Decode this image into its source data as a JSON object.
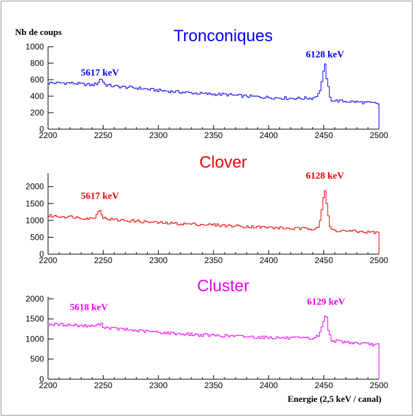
{
  "ylabel": "Nb de coups",
  "xlabel": "Energie (2,5 keV / canal)",
  "chart_data": [
    {
      "type": "line",
      "title": "Tronconiques",
      "color": "#0000ee",
      "xlim": [
        2200,
        2500
      ],
      "ylim": [
        0,
        1000
      ],
      "xticks": [
        2200,
        2250,
        2300,
        2350,
        2400,
        2450,
        2500
      ],
      "yticks": [
        0,
        200,
        400,
        600,
        800,
        1000
      ],
      "series": [
        {
          "x": [
            2200,
            2220,
            2240,
            2245,
            2248,
            2252,
            2260,
            2280,
            2300,
            2320,
            2340,
            2360,
            2380,
            2400,
            2420,
            2440,
            2446,
            2449,
            2451,
            2453,
            2456,
            2460,
            2480,
            2500
          ],
          "values": [
            560,
            560,
            535,
            555,
            620,
            540,
            520,
            500,
            470,
            450,
            430,
            420,
            400,
            385,
            375,
            375,
            430,
            620,
            800,
            600,
            360,
            345,
            330,
            310
          ]
        }
      ],
      "annotations": [
        {
          "text": "5617 keV",
          "x": 2247,
          "y": 650
        },
        {
          "text": "6128 keV",
          "x": 2451,
          "y": 870
        }
      ]
    },
    {
      "type": "line",
      "title": "Clover",
      "color": "#ee0000",
      "xlim": [
        2200,
        2500
      ],
      "ylim": [
        0,
        2400
      ],
      "xticks": [
        2200,
        2250,
        2300,
        2350,
        2400,
        2450,
        2500
      ],
      "yticks": [
        0,
        500,
        1000,
        1500,
        2000
      ],
      "series": [
        {
          "x": [
            2200,
            2220,
            2240,
            2244,
            2247,
            2250,
            2260,
            2280,
            2300,
            2320,
            2340,
            2360,
            2380,
            2400,
            2420,
            2440,
            2446,
            2449,
            2451,
            2453,
            2456,
            2460,
            2480,
            2500
          ],
          "values": [
            1130,
            1110,
            1050,
            1140,
            1360,
            1070,
            1020,
            980,
            930,
            900,
            880,
            850,
            820,
            790,
            760,
            750,
            840,
            1500,
            1950,
            1400,
            750,
            700,
            670,
            640
          ]
        }
      ],
      "annotations": [
        {
          "text": "5617 keV",
          "x": 2247,
          "y": 1640
        },
        {
          "text": "6128 keV",
          "x": 2451,
          "y": 2240
        }
      ]
    },
    {
      "type": "line",
      "title": "Cluster",
      "color": "#ee00ee",
      "xlim": [
        2200,
        2500
      ],
      "ylim": [
        0,
        2050
      ],
      "xticks": [
        2200,
        2250,
        2300,
        2350,
        2400,
        2450,
        2500
      ],
      "yticks": [
        0,
        500,
        1000,
        1500,
        2000
      ],
      "series": [
        {
          "x": [
            2200,
            2220,
            2240,
            2245,
            2248,
            2251,
            2260,
            2280,
            2300,
            2320,
            2340,
            2360,
            2380,
            2400,
            2420,
            2440,
            2446,
            2449,
            2452,
            2454,
            2457,
            2460,
            2480,
            2500
          ],
          "values": [
            1370,
            1350,
            1320,
            1340,
            1380,
            1300,
            1260,
            1210,
            1170,
            1130,
            1100,
            1080,
            1060,
            1040,
            1020,
            1010,
            1090,
            1350,
            1680,
            1250,
            980,
            950,
            900,
            850
          ]
        }
      ],
      "annotations": [
        {
          "text": "5618 keV",
          "x": 2237,
          "y": 1720
        },
        {
          "text": "6129 keV",
          "x": 2452,
          "y": 1850
        }
      ]
    }
  ]
}
